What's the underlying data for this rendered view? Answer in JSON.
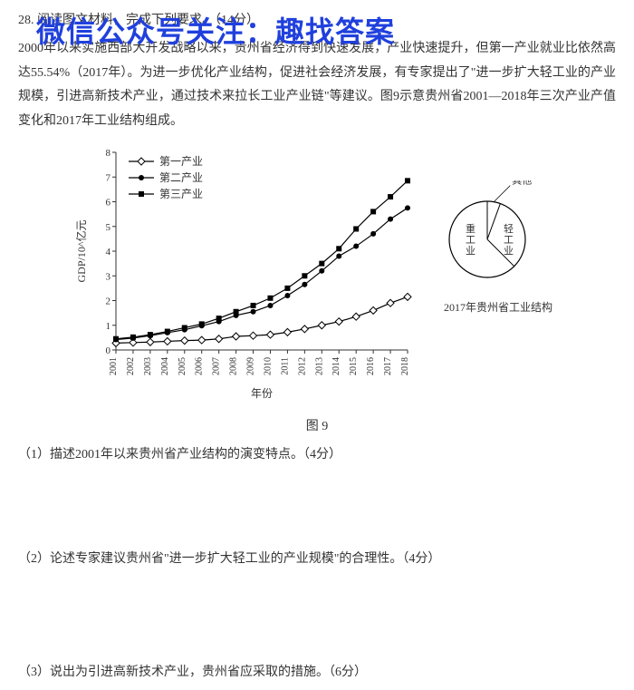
{
  "watermark": "微信公众号关注：趣找答案",
  "question_num": "28.",
  "header_line1": "阅读图文材料，完成下列要求。（14分）",
  "paragraph": "2000年以来实施西部大开发战略以来，贵州省经济得到快速发展，产业快速提升，但第一产业就业比依然高达55.54%（2017年）。为进一步优化产业结构，促进社会经济发展，有专家提出了\"进一步扩大轻工业的产业规模，引进高新技术产业，通过技术来拉长工业产业链\"等建议。图9示意贵州省2001—2018年三次产业产值变化和2017年工业结构组成。",
  "chart": {
    "type": "line",
    "ylabel": "GDP/10^亿元",
    "xlabel": "年份",
    "ylim": [
      0,
      8
    ],
    "ytick_step": 1,
    "years": [
      2001,
      2002,
      2003,
      2004,
      2005,
      2006,
      2007,
      2008,
      2009,
      2010,
      2011,
      2012,
      2013,
      2014,
      2015,
      2016,
      2017,
      2018
    ],
    "series": [
      {
        "name": "第一产业",
        "marker": "diamond-open",
        "color": "#000000",
        "data": [
          0.28,
          0.3,
          0.32,
          0.35,
          0.38,
          0.4,
          0.45,
          0.55,
          0.58,
          0.62,
          0.72,
          0.85,
          1.0,
          1.15,
          1.35,
          1.6,
          1.9,
          2.15
        ]
      },
      {
        "name": "第二产业",
        "marker": "circle-filled",
        "color": "#000000",
        "data": [
          0.42,
          0.48,
          0.58,
          0.7,
          0.82,
          0.98,
          1.15,
          1.4,
          1.55,
          1.8,
          2.2,
          2.65,
          3.2,
          3.8,
          4.2,
          4.7,
          5.3,
          5.75
        ]
      },
      {
        "name": "第三产业",
        "marker": "square-filled",
        "color": "#000000",
        "data": [
          0.45,
          0.52,
          0.62,
          0.75,
          0.9,
          1.05,
          1.28,
          1.55,
          1.8,
          2.1,
          2.5,
          3.0,
          3.5,
          4.1,
          4.9,
          5.6,
          6.2,
          6.85
        ]
      }
    ],
    "legend_pos": "top-left",
    "background_color": "#ffffff",
    "grid_color": "#333333"
  },
  "pie": {
    "title": "2017年贵州省工业结构",
    "slices": [
      {
        "label": "重工业",
        "angle_start": 135,
        "angle_end": 360
      },
      {
        "label": "轻工业",
        "angle_start": 20,
        "angle_end": 135
      },
      {
        "label": "其他",
        "angle_start": 0,
        "angle_end": 20
      }
    ],
    "color": "#000000"
  },
  "figure_caption": "图 9",
  "sub_questions": {
    "q1": "（1）描述2001年以来贵州省产业结构的演变特点。（4分）",
    "q2": "（2）论述专家建议贵州省\"进一步扩大轻工业的产业规模\"的合理性。（4分）",
    "q3": "（3）说出为引进高新技术产业，贵州省应采取的措施。（6分）"
  }
}
